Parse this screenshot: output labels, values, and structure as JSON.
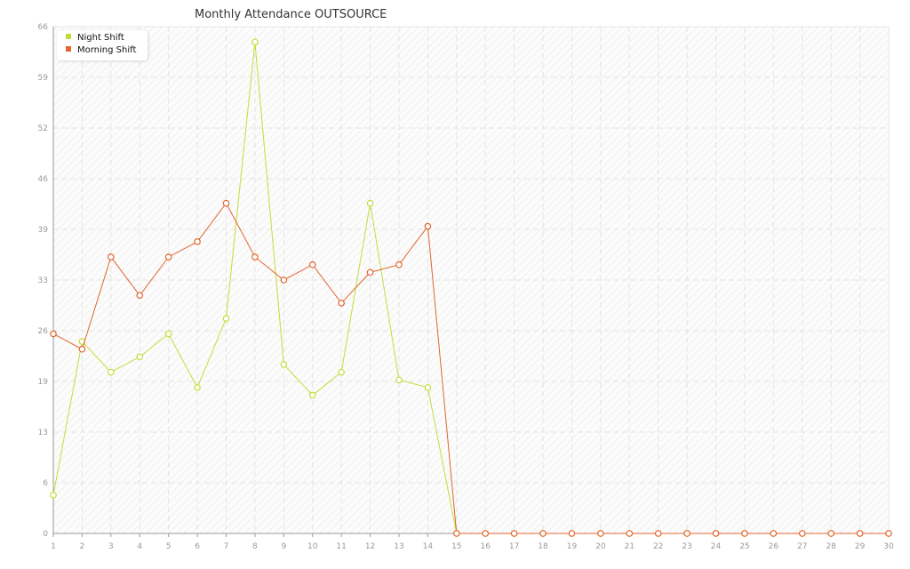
{
  "chart_data": {
    "type": "line",
    "title": "Monthly Attendance OUTSOURCE",
    "xlabel": "",
    "ylabel": "",
    "categories": [
      1,
      2,
      3,
      4,
      5,
      6,
      7,
      8,
      9,
      10,
      11,
      12,
      13,
      14,
      15,
      16,
      17,
      18,
      19,
      20,
      21,
      22,
      23,
      24,
      25,
      26,
      27,
      28,
      29,
      30
    ],
    "yticks": [
      0,
      6,
      13,
      19,
      26,
      33,
      39,
      46,
      52,
      59,
      66
    ],
    "ylim": [
      0,
      66
    ],
    "grid": true,
    "legend": "top-left",
    "series": [
      {
        "name": "Night Shift",
        "color": "#c4dd3a",
        "values": [
          5,
          25,
          21,
          23,
          26,
          19,
          28,
          64,
          22,
          18,
          21,
          43,
          20,
          19,
          0,
          0,
          0,
          0,
          0,
          0,
          0,
          0,
          0,
          0,
          0,
          0,
          0,
          0,
          0,
          0
        ]
      },
      {
        "name": "Morning Shift",
        "color": "#e0652f",
        "values": [
          26,
          24,
          36,
          31,
          36,
          38,
          43,
          36,
          33,
          35,
          30,
          34,
          35,
          40,
          0,
          0,
          0,
          0,
          0,
          0,
          0,
          0,
          0,
          0,
          0,
          0,
          0,
          0,
          0,
          0
        ]
      }
    ]
  }
}
